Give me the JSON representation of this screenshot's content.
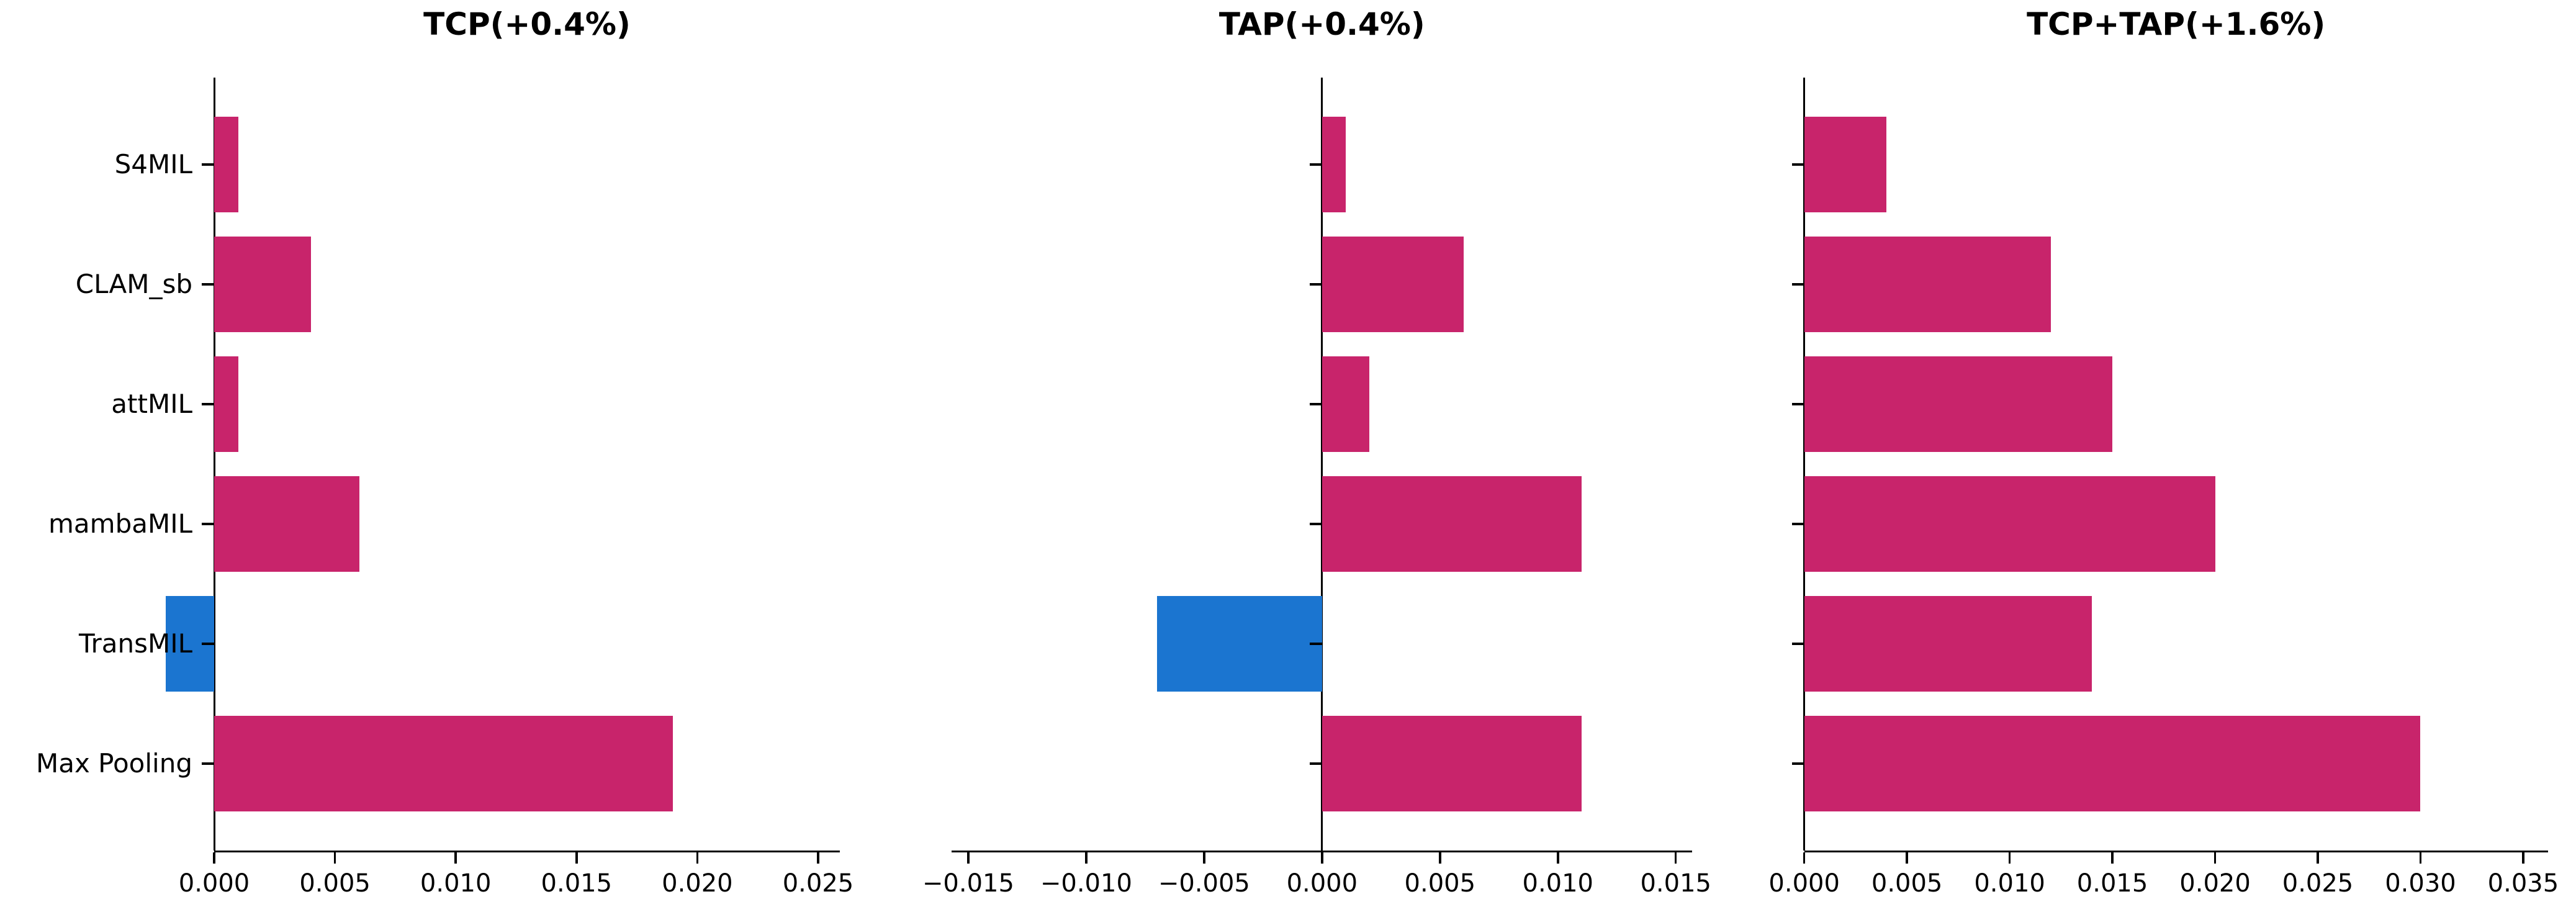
{
  "figure": {
    "background": "#ffffff"
  },
  "colors": {
    "bar": "#c8246b",
    "highlight": "#1b75d0",
    "axis": "#000000"
  },
  "chart_data": [
    {
      "type": "bar",
      "orientation": "horizontal",
      "title": "TCP(+0.4%)",
      "categories": [
        "S4MIL",
        "CLAM_sb",
        "attMIL",
        "mambaMIL",
        "TransMIL",
        "Max Pooling"
      ],
      "values": [
        0.001,
        0.004,
        0.001,
        0.006,
        -0.002,
        0.019
      ],
      "bar_colors": [
        "bar",
        "bar",
        "bar",
        "bar",
        "highlight",
        "bar"
      ],
      "xlim": [
        0,
        0.0259
      ],
      "xtick_values": [
        0,
        0.005,
        0.01,
        0.015,
        0.02,
        0.025
      ],
      "xtick_labels": [
        "0.000",
        "0.005",
        "0.010",
        "0.015",
        "0.020",
        "0.025"
      ],
      "grid": false,
      "legend": false,
      "show_category_labels": true
    },
    {
      "type": "bar",
      "orientation": "horizontal",
      "title": "TAP(+0.4%)",
      "categories": [
        "S4MIL",
        "CLAM_sb",
        "attMIL",
        "mambaMIL",
        "TransMIL",
        "Max Pooling"
      ],
      "values": [
        0.001,
        0.006,
        0.002,
        0.011,
        -0.007,
        0.011
      ],
      "bar_colors": [
        "bar",
        "bar",
        "bar",
        "bar",
        "highlight",
        "bar"
      ],
      "xlim": [
        -0.0157,
        0.0157
      ],
      "xtick_values": [
        -0.015,
        -0.01,
        -0.005,
        0,
        0.005,
        0.01,
        0.015
      ],
      "xtick_labels": [
        "−0.015",
        "−0.010",
        "−0.005",
        "0.000",
        "0.005",
        "0.010",
        "0.015"
      ],
      "grid": false,
      "legend": false,
      "show_category_labels": false
    },
    {
      "type": "bar",
      "orientation": "horizontal",
      "title": "TCP+TAP(+1.6%)",
      "categories": [
        "S4MIL",
        "CLAM_sb",
        "attMIL",
        "mambaMIL",
        "TransMIL",
        "Max Pooling"
      ],
      "values": [
        0.004,
        0.012,
        0.015,
        0.02,
        0.014,
        0.03
      ],
      "bar_colors": [
        "bar",
        "bar",
        "bar",
        "bar",
        "bar",
        "bar"
      ],
      "xlim": [
        0,
        0.0362
      ],
      "xtick_values": [
        0,
        0.005,
        0.01,
        0.015,
        0.02,
        0.025,
        0.03,
        0.035
      ],
      "xtick_labels": [
        "0.000",
        "0.005",
        "0.010",
        "0.015",
        "0.020",
        "0.025",
        "0.030",
        "0.035"
      ],
      "grid": false,
      "legend": false,
      "show_category_labels": false
    }
  ]
}
